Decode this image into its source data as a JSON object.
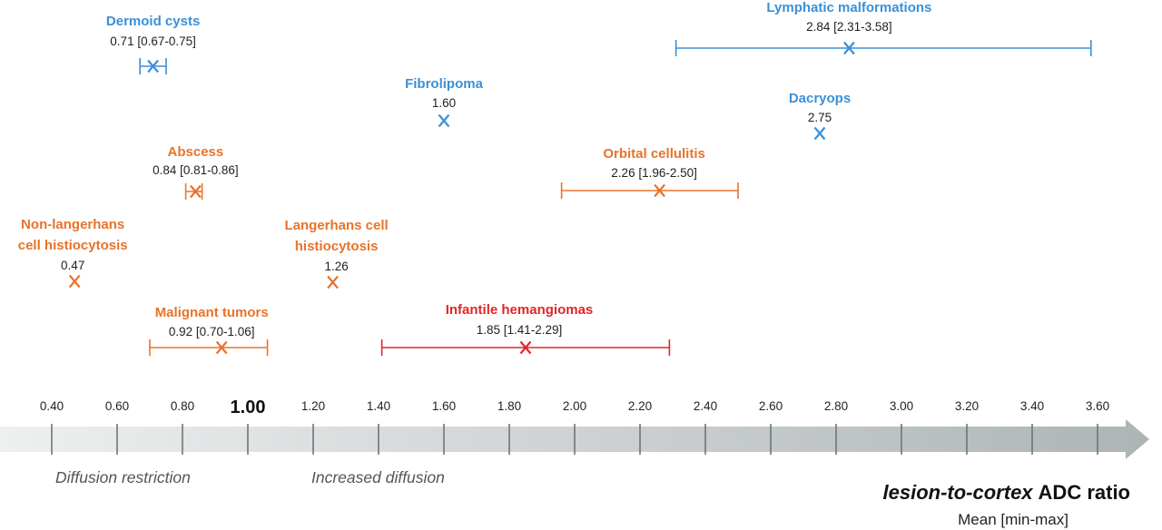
{
  "chart_data": {
    "type": "scatter",
    "title": "",
    "xlabel_italic": "lesion-to-cortex",
    "xlabel_rest": "ADC ratio",
    "xlabel_sub": "Mean [min-max]",
    "xlim": [
      0.4,
      3.6
    ],
    "x_ticks": [
      "0.40",
      "0.60",
      "0.80",
      "1.00",
      "1.20",
      "1.40",
      "1.60",
      "1.80",
      "2.00",
      "2.20",
      "2.40",
      "2.60",
      "2.80",
      "3.00",
      "3.20",
      "3.40",
      "3.60"
    ],
    "reference_tick": "1.00",
    "regions": [
      "Diffusion restriction",
      "Increased diffusion"
    ],
    "colors": {
      "blue": "#3b8fd9",
      "orange": "#e8732a",
      "red": "#e02626",
      "axis": "#c9cdcd"
    },
    "lesions": [
      {
        "name_lines": [
          "Dermoid cysts"
        ],
        "value_text": "0.71 [0.67-0.75]",
        "mean": 0.71,
        "min": 0.67,
        "max": 0.75,
        "color": "blue"
      },
      {
        "name_lines": [
          "Lymphatic malformations"
        ],
        "value_text": "2.84 [2.31-3.58]",
        "mean": 2.84,
        "min": 2.31,
        "max": 3.58,
        "color": "blue"
      },
      {
        "name_lines": [
          "Fibrolipoma"
        ],
        "value_text": "1.60",
        "mean": 1.6,
        "color": "blue"
      },
      {
        "name_lines": [
          "Dacryops"
        ],
        "value_text": "2.75",
        "mean": 2.75,
        "color": "blue"
      },
      {
        "name_lines": [
          "Abscess"
        ],
        "value_text": "0.84 [0.81-0.86]",
        "mean": 0.84,
        "min": 0.81,
        "max": 0.86,
        "color": "orange"
      },
      {
        "name_lines": [
          "Orbital cellulitis"
        ],
        "value_text": "2.26 [1.96-2.50]",
        "mean": 2.26,
        "min": 1.96,
        "max": 2.5,
        "color": "orange"
      },
      {
        "name_lines": [
          "Non-langerhans",
          "cell histiocytosis"
        ],
        "value_text": "0.47",
        "mean": 0.47,
        "color": "orange"
      },
      {
        "name_lines": [
          "Langerhans cell",
          "histiocytosis"
        ],
        "value_text": "1.26",
        "mean": 1.26,
        "color": "orange"
      },
      {
        "name_lines": [
          "Malignant tumors"
        ],
        "value_text": "0.92 [0.70-1.06]",
        "mean": 0.92,
        "min": 0.7,
        "max": 1.06,
        "color": "orange"
      },
      {
        "name_lines": [
          "Infantile hemangiomas"
        ],
        "value_text": "1.85 [1.41-2.29]",
        "mean": 1.85,
        "min": 1.41,
        "max": 2.29,
        "color": "red"
      }
    ]
  }
}
